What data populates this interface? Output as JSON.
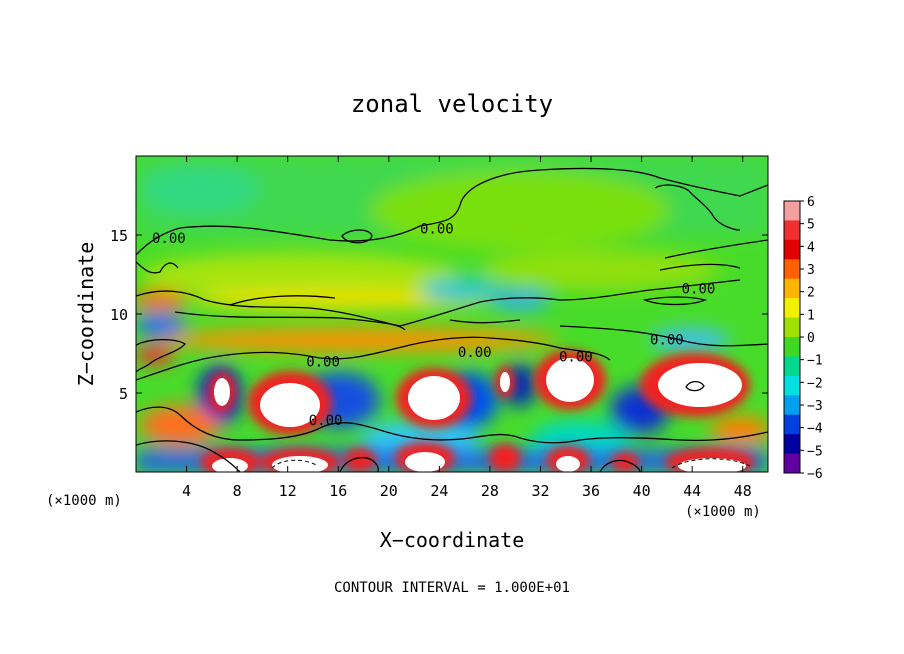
{
  "chart_data": {
    "type": "heatmap",
    "title": "zonal velocity",
    "xlabel": "X−coordinate",
    "ylabel": "Z−coordinate",
    "x_unit_left": "(×1000 m)",
    "x_unit_right": "(×1000 m)",
    "xlim": [
      0,
      50
    ],
    "ylim": [
      0,
      20
    ],
    "x_ticks": [
      4,
      8,
      12,
      16,
      20,
      24,
      28,
      32,
      36,
      40,
      44,
      48
    ],
    "y_ticks": [
      5,
      10,
      15
    ],
    "colorbar": {
      "ticks": [
        6,
        5,
        4,
        3,
        2,
        1,
        0,
        -1,
        -2,
        -3,
        -4,
        -5,
        -6
      ],
      "tick_labels": [
        "6",
        "5",
        "4",
        "3",
        "2",
        "1",
        "0",
        "−1",
        "−2",
        "−3",
        "−4",
        "−5",
        "−6"
      ],
      "colors": [
        "#f4a0a0",
        "#f03030",
        "#e00000",
        "#ff6000",
        "#ffb400",
        "#f0f000",
        "#a0e000",
        "#40d820",
        "#00d890",
        "#00e0e0",
        "#00a0f0",
        "#0040e0",
        "#0000a0",
        "#6000a0"
      ]
    },
    "contour_labels": [
      {
        "text": "0.00",
        "x": 2.6,
        "z": 14.8
      },
      {
        "text": "0.00",
        "x": 23.8,
        "z": 15.4
      },
      {
        "text": "0.00",
        "x": 44.5,
        "z": 11.6
      },
      {
        "text": "0.00",
        "x": 42.0,
        "z": 8.4
      },
      {
        "text": "0.00",
        "x": 14.8,
        "z": 7.0
      },
      {
        "text": "0.00",
        "x": 26.8,
        "z": 7.6
      },
      {
        "text": "0.00",
        "x": 34.8,
        "z": 7.3
      },
      {
        "text": "0.00",
        "x": 15.0,
        "z": 3.3
      }
    ],
    "footer": "CONTOUR INTERVAL = 1.000E+01"
  }
}
